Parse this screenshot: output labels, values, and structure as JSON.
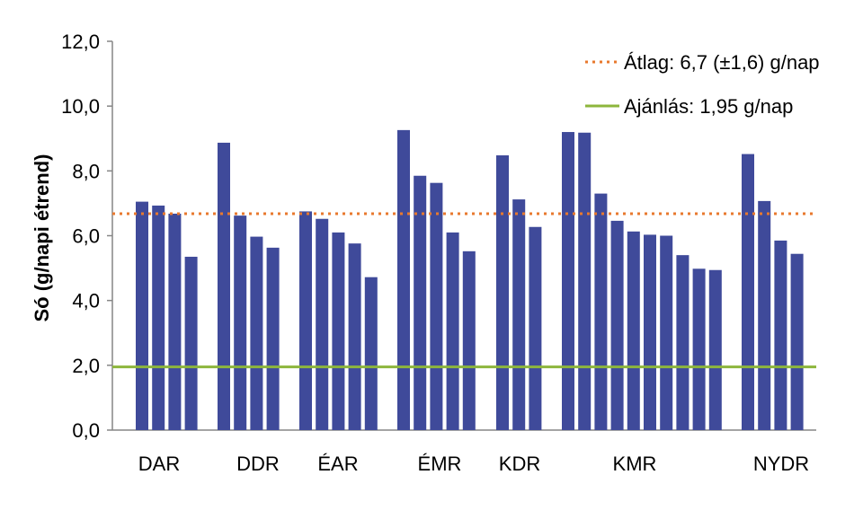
{
  "chart_data": {
    "type": "bar",
    "ylabel": "Só (g/napi étrend)",
    "xlabel": "",
    "ylim": [
      0,
      12
    ],
    "yticks": [
      "0,0",
      "2,0",
      "4,0",
      "6,0",
      "8,0",
      "10,0",
      "12,0"
    ],
    "grid": false,
    "bar_color": "#3f4a9a",
    "groups": [
      {
        "label": "DAR",
        "values": [
          7.05,
          6.93,
          6.68,
          5.35
        ]
      },
      {
        "label": "DDR",
        "values": [
          8.87,
          6.62,
          5.97,
          5.63
        ]
      },
      {
        "label": "ÉAR",
        "values": [
          6.75,
          6.52,
          6.1,
          5.76,
          4.72
        ]
      },
      {
        "label": "ÉMR",
        "values": [
          9.26,
          7.85,
          7.63,
          6.1,
          5.52
        ]
      },
      {
        "label": "KDR",
        "values": [
          8.48,
          7.12,
          6.27
        ]
      },
      {
        "label": "KMR",
        "values": [
          9.2,
          9.18,
          7.3,
          6.46,
          6.13,
          6.03,
          6.0,
          5.4,
          4.98,
          4.94
        ]
      },
      {
        "label": "NYDR",
        "values": [
          8.52,
          7.07,
          5.85,
          5.44
        ]
      }
    ],
    "reference_lines": [
      {
        "name": "Átlag: 6,7 (±1,6) g/nap",
        "value": 6.68,
        "style": "dotted",
        "color": "#e8792e"
      },
      {
        "name": "Ajánlás: 1,95 g/nap",
        "value": 1.95,
        "style": "solid",
        "color": "#8db63c"
      }
    ],
    "legend_position": "top-right"
  }
}
